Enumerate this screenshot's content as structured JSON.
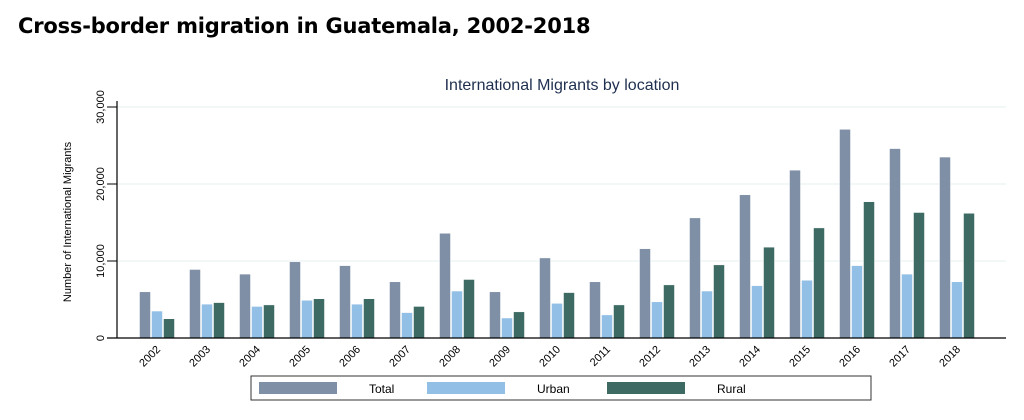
{
  "page": {
    "heading": "Cross-border migration in Guatemala, 2002-2018"
  },
  "chart_data": {
    "type": "bar",
    "title": "International Migrants by location",
    "xlabel": "",
    "ylabel": "Number of International Migrants",
    "ylim": [
      0,
      30000
    ],
    "yticks": [
      0,
      10000,
      20000,
      30000
    ],
    "ytick_labels": [
      "0",
      "10,000",
      "20,000",
      "30,000"
    ],
    "grid": true,
    "legend_position": "bottom",
    "categories": [
      "2002",
      "2003",
      "2004",
      "2005",
      "2006",
      "2007",
      "2008",
      "2009",
      "2010",
      "2011",
      "2012",
      "2013",
      "2014",
      "2015",
      "2016",
      "2017",
      "2018"
    ],
    "series": [
      {
        "name": "Total",
        "color": "#7f8fa6",
        "values": [
          6000,
          8900,
          8300,
          9900,
          9400,
          7300,
          13600,
          6000,
          10400,
          7300,
          11600,
          15600,
          18600,
          21800,
          27100,
          24600,
          23500
        ]
      },
      {
        "name": "Urban",
        "color": "#91bfe6",
        "values": [
          3500,
          4400,
          4100,
          4900,
          4400,
          3300,
          6100,
          2600,
          4500,
          3000,
          4700,
          6100,
          6800,
          7500,
          9400,
          8300,
          7300
        ]
      },
      {
        "name": "Rural",
        "color": "#3d6b63",
        "values": [
          2500,
          4600,
          4300,
          5100,
          5100,
          4100,
          7600,
          3400,
          5900,
          4300,
          6900,
          9500,
          11800,
          14300,
          17700,
          16300,
          16200
        ]
      }
    ]
  }
}
